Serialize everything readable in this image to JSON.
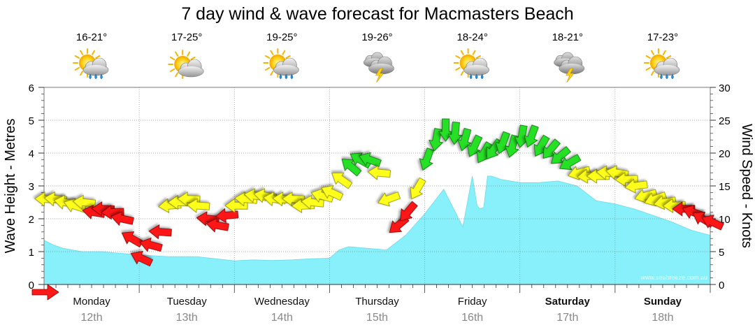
{
  "chart_data": {
    "type": "area",
    "title": "7 day wind & wave forecast for Macmasters Beach",
    "ylabel_left": "Wave Height - Metres",
    "ylabel_right": "Wind Speed - Knots",
    "ylim_left": [
      0,
      6
    ],
    "ylim_right": [
      0,
      30
    ],
    "yticks_left": [
      "0",
      "1",
      "2",
      "3",
      "4",
      "5",
      "6"
    ],
    "yticks_right": [
      "0",
      "5",
      "10",
      "15",
      "20",
      "25",
      "30"
    ],
    "watermark": "www.seabreeze.com.au",
    "days": [
      {
        "name": "Monday",
        "date": "12th",
        "temp": "16-21°",
        "weather": "sun-shower-icon",
        "bold": false
      },
      {
        "name": "Tuesday",
        "date": "13th",
        "temp": "17-25°",
        "weather": "partly-cloudy-icon",
        "bold": false
      },
      {
        "name": "Wednesday",
        "date": "14th",
        "temp": "19-25°",
        "weather": "sun-shower-icon",
        "bold": false
      },
      {
        "name": "Thursday",
        "date": "15th",
        "temp": "19-26°",
        "weather": "storm-icon",
        "bold": false
      },
      {
        "name": "Friday",
        "date": "16th",
        "temp": "18-24°",
        "weather": "sun-shower-icon",
        "bold": false
      },
      {
        "name": "Saturday",
        "date": "17th",
        "temp": "18-21°",
        "weather": "storm-icon",
        "bold": true
      },
      {
        "name": "Sunday",
        "date": "18th",
        "temp": "17-23°",
        "weather": "sun-shower-icon",
        "bold": true
      }
    ],
    "wave_series": {
      "name": "Wave Height",
      "x_days": [
        0.0,
        0.1,
        0.2,
        0.4,
        0.6,
        0.8,
        1.0,
        1.3,
        1.6,
        2.0,
        2.2,
        2.4,
        2.6,
        2.8,
        3.0,
        3.1,
        3.2,
        3.4,
        3.6,
        3.8,
        4.0,
        4.2,
        4.4,
        4.5,
        4.55,
        4.58,
        4.62,
        4.66,
        4.7,
        4.8,
        5.0,
        5.2,
        5.4,
        5.6,
        5.8,
        6.0,
        6.2,
        6.4,
        6.6,
        6.8,
        7.0
      ],
      "values": [
        1.35,
        1.2,
        1.1,
        1.0,
        1.0,
        0.95,
        0.9,
        0.85,
        0.85,
        0.72,
        0.75,
        0.73,
        0.75,
        0.78,
        0.8,
        1.05,
        1.15,
        1.1,
        1.05,
        1.5,
        2.15,
        2.9,
        1.75,
        3.3,
        2.4,
        2.3,
        2.35,
        3.3,
        3.3,
        3.2,
        3.1,
        3.1,
        3.15,
        3.0,
        2.55,
        2.45,
        2.3,
        2.1,
        1.9,
        1.65,
        1.5
      ]
    },
    "wind_series": {
      "name": "Wind Speed (arrow position = knots, color = strength)",
      "times": [
        0.0,
        0.1,
        0.2,
        0.3,
        0.4,
        0.5,
        0.6,
        0.7,
        0.8,
        0.9,
        1.0,
        1.1,
        1.2,
        1.3,
        1.4,
        1.5,
        1.6,
        1.7,
        1.8,
        1.9,
        2.0,
        2.1,
        2.2,
        2.3,
        2.4,
        2.5,
        2.6,
        2.7,
        2.8,
        2.9,
        3.0,
        3.1,
        3.2,
        3.3,
        3.4,
        3.5,
        3.6,
        3.7,
        3.8,
        3.9,
        4.0,
        4.1,
        4.2,
        4.3,
        4.4,
        4.5,
        4.6,
        4.7,
        4.8,
        4.9,
        5.0,
        5.1,
        5.2,
        5.3,
        5.4,
        5.5,
        5.6,
        5.7,
        5.8,
        5.9,
        6.0,
        6.1,
        6.2,
        6.3,
        6.4,
        6.5,
        6.6,
        6.7,
        6.8,
        6.9,
        7.0
      ],
      "knots": [
        13,
        13,
        12.5,
        12,
        12.5,
        11,
        11.5,
        11,
        10,
        7,
        4,
        6,
        8,
        12,
        12.5,
        13,
        12,
        10,
        9,
        10.5,
        12,
        13,
        13.5,
        13.5,
        13,
        13,
        13,
        12,
        12.5,
        13.5,
        14,
        16,
        18,
        19,
        19,
        17,
        13,
        9,
        11,
        14.5,
        19,
        22,
        23.5,
        23,
        22,
        21,
        20,
        20.5,
        21.5,
        21,
        22.5,
        22.5,
        21,
        20.5,
        19.5,
        18.5,
        17,
        16.5,
        16.5,
        17,
        17,
        16,
        15,
        13.5,
        13,
        12.5,
        12,
        11.5,
        11,
        10,
        9.5
      ]
    }
  }
}
